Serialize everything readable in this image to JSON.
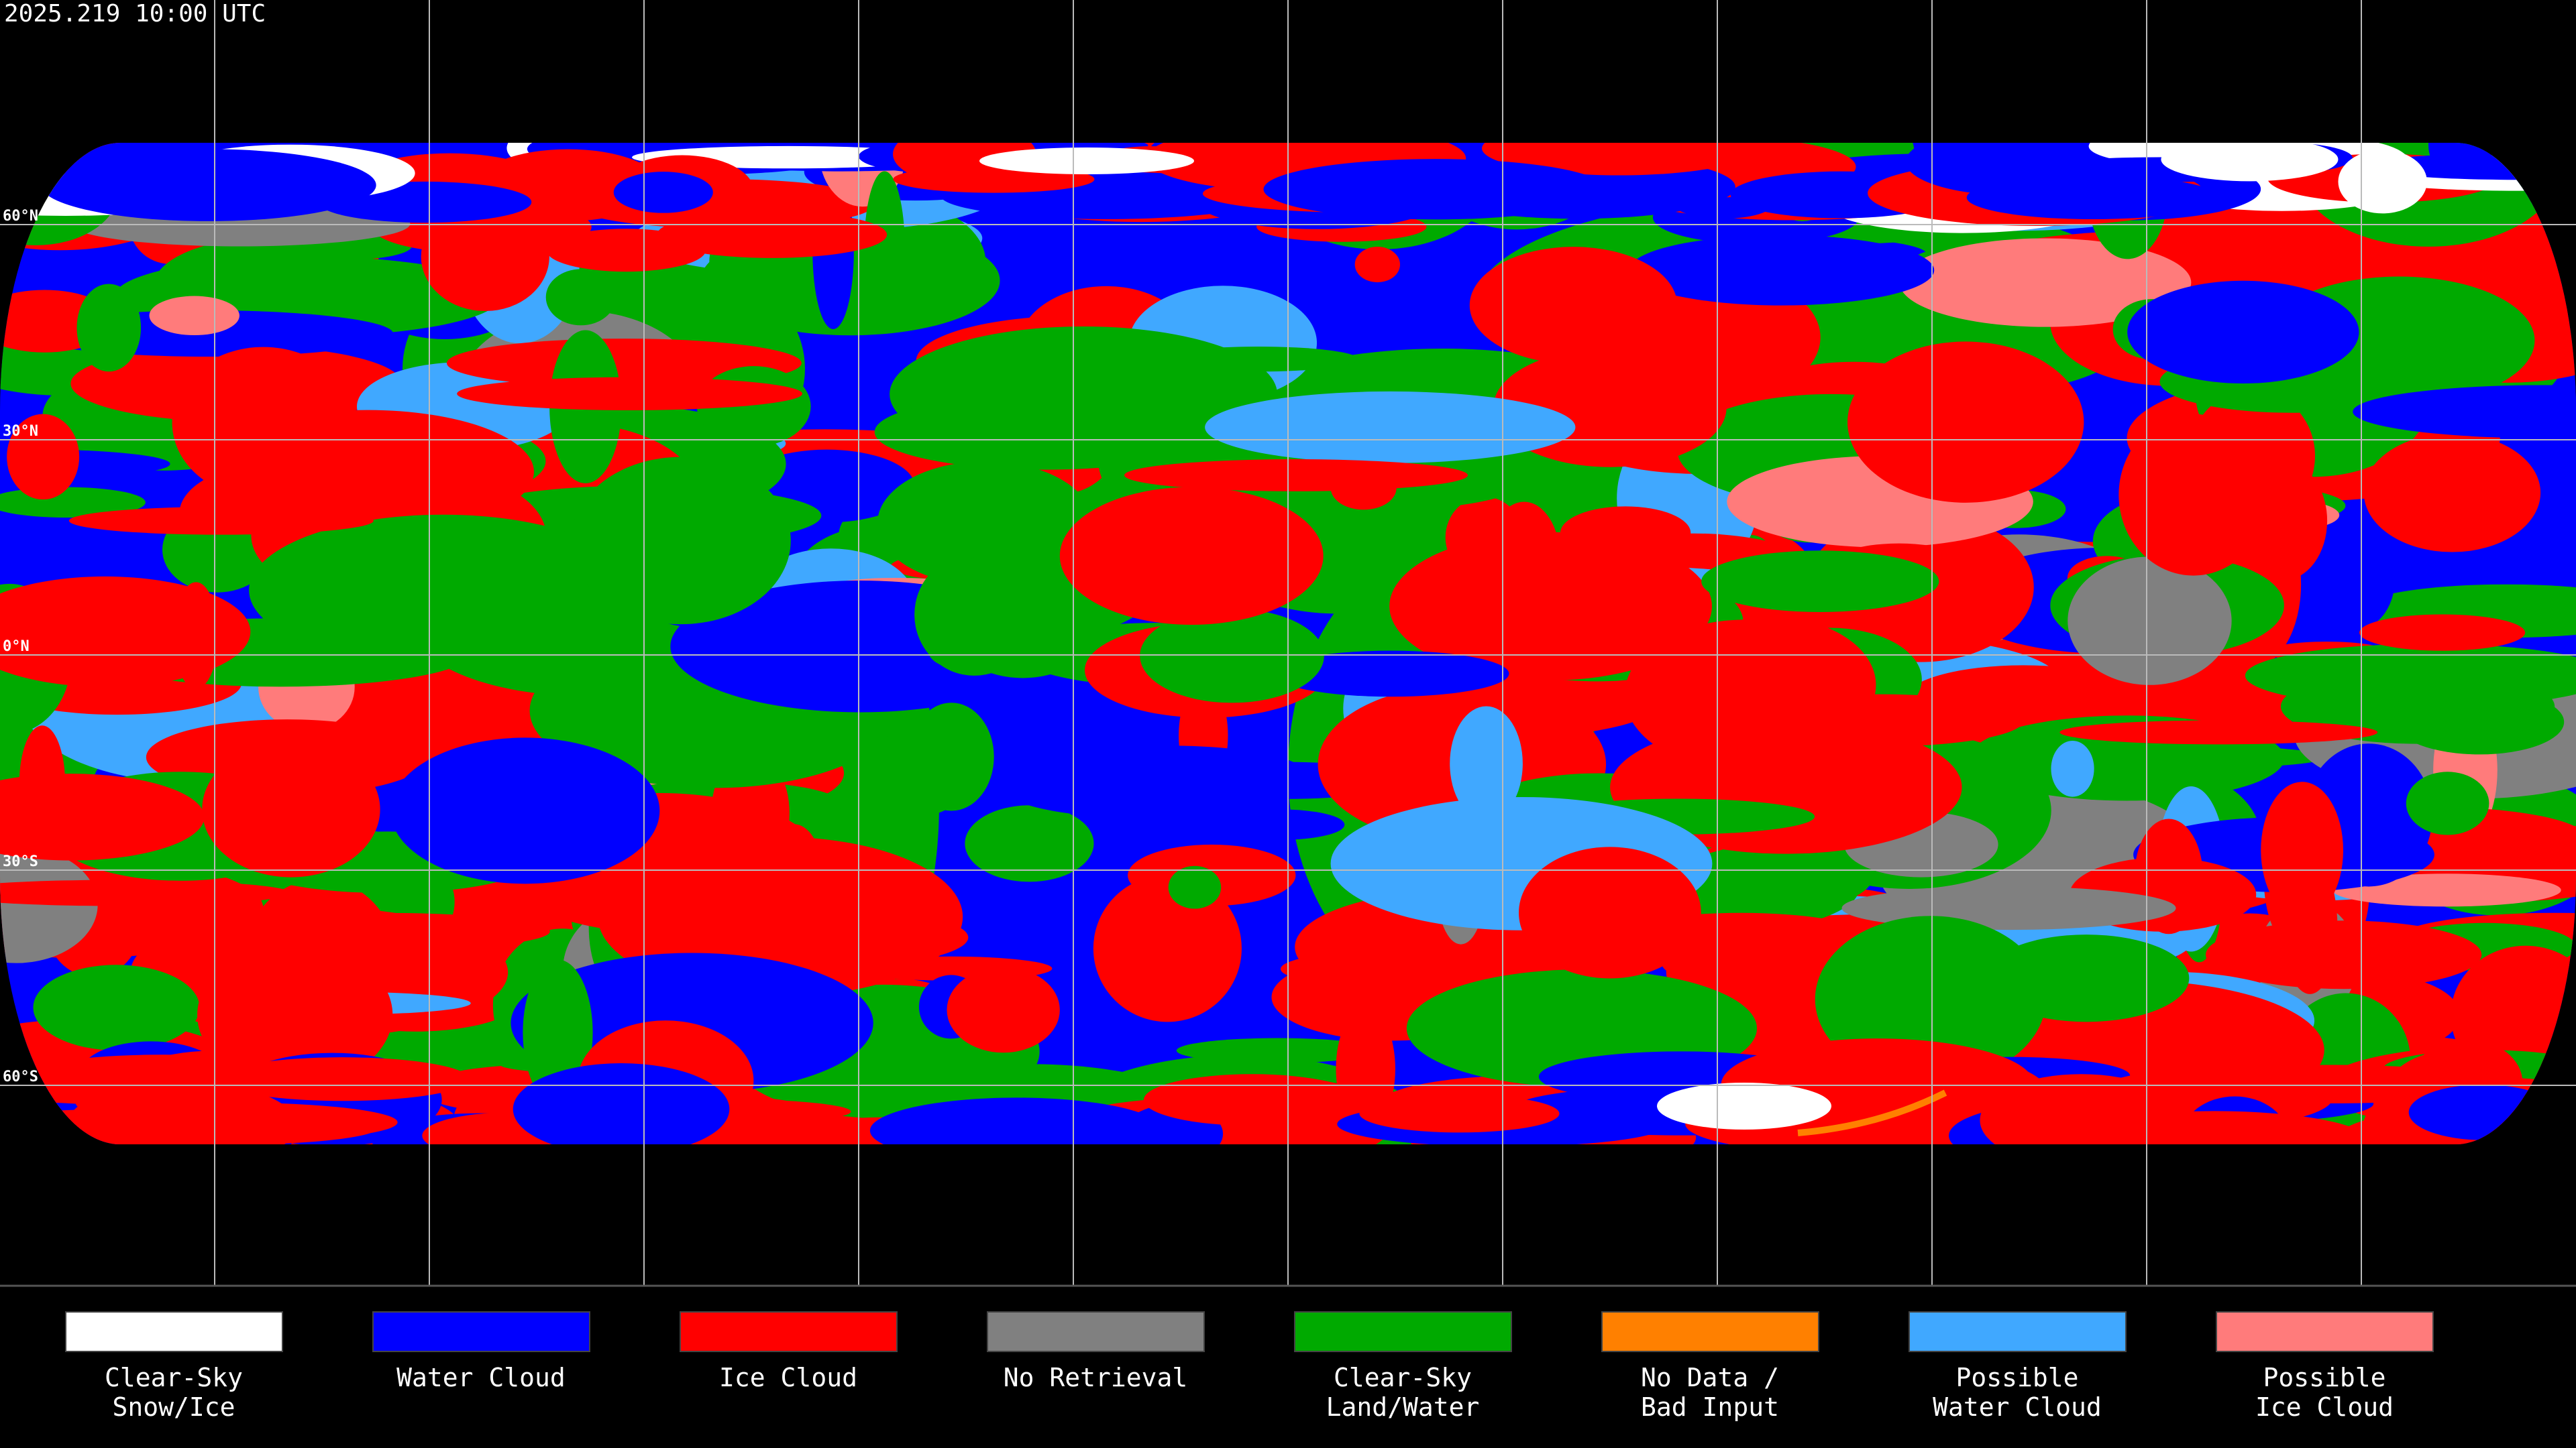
{
  "header": {
    "title": "2025.219 10:00 UTC"
  },
  "latitude_labels": [
    "60°N",
    "30°N",
    "0°N",
    "30°S",
    "60°S"
  ],
  "legend": {
    "items": [
      {
        "label": [
          "Clear-Sky",
          "Snow/Ice"
        ],
        "color": "#ffffff"
      },
      {
        "label": [
          "Water Cloud"
        ],
        "color": "#0000ff"
      },
      {
        "label": [
          "Ice Cloud"
        ],
        "color": "#ff0000"
      },
      {
        "label": [
          "No Retrieval"
        ],
        "color": "#808080"
      },
      {
        "label": [
          "Clear-Sky",
          "Land/Water"
        ],
        "color": "#00aa00"
      },
      {
        "label": [
          "No Data /",
          "Bad Input"
        ],
        "color": "#ff8000"
      },
      {
        "label": [
          "Possible",
          "Water Cloud"
        ],
        "color": "#40a8ff"
      },
      {
        "label": [
          "Possible",
          "Ice Cloud"
        ],
        "color": "#ff7b7b"
      }
    ]
  }
}
